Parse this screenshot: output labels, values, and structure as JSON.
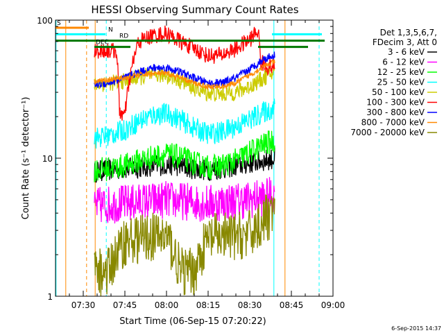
{
  "chart_data": {
    "type": "line",
    "title": "HESSI Observing Summary Count Rates",
    "xlabel": "Start Time (06-Sep-15 07:20:22)",
    "ylabel": "Count Rate (s⁻¹ detector⁻¹)",
    "x_unit": "minutes of day",
    "xlim": [
      440,
      540
    ],
    "ylim": [
      1,
      100
    ],
    "y_scale": "log",
    "x_ticks": [
      {
        "x": 450,
        "label": "07:30"
      },
      {
        "x": 465,
        "label": "07:45"
      },
      {
        "x": 480,
        "label": "08:00"
      },
      {
        "x": 495,
        "label": "08:15"
      },
      {
        "x": 510,
        "label": "08:30"
      },
      {
        "x": 525,
        "label": "08:45"
      },
      {
        "x": 540,
        "label": "09:00"
      }
    ],
    "y_ticks": [
      {
        "y": 1,
        "label": "1"
      },
      {
        "y": 10,
        "label": "10"
      },
      {
        "y": 100,
        "label": "100"
      }
    ],
    "legend_title": [
      "Det 1,3,5,6,7,",
      "FDecim 3, Att 0"
    ],
    "legend_position": "right",
    "series": [
      {
        "name": "3 - 6 keV",
        "color": "#000000",
        "x": [
          454,
          459,
          465,
          470,
          475,
          480,
          485,
          490,
          495,
          500,
          505,
          510,
          515,
          519
        ],
        "y": [
          8.0,
          8.2,
          8.4,
          8.6,
          8.8,
          9.0,
          8.8,
          8.4,
          8.2,
          8.4,
          8.8,
          9.2,
          9.6,
          10.0
        ],
        "noise": 0.08
      },
      {
        "name": "6 - 12 keV",
        "color": "#ff00ff",
        "x": [
          454,
          459,
          465,
          470,
          475,
          480,
          485,
          490,
          495,
          500,
          505,
          510,
          515,
          519
        ],
        "y": [
          4.5,
          4.6,
          4.7,
          4.8,
          4.9,
          5.0,
          4.9,
          4.8,
          4.7,
          4.8,
          4.9,
          5.0,
          5.2,
          5.4
        ],
        "noise": 0.14
      },
      {
        "name": "12 - 25 keV",
        "color": "#00ff00",
        "x": [
          454,
          459,
          465,
          470,
          475,
          480,
          485,
          490,
          495,
          500,
          505,
          510,
          515,
          519
        ],
        "y": [
          8.2,
          8.4,
          8.8,
          9.6,
          10.2,
          10.6,
          10.2,
          9.2,
          8.6,
          8.8,
          9.6,
          11.0,
          12.5,
          13.5
        ],
        "noise": 0.09
      },
      {
        "name": "25 - 50 keV",
        "color": "#00ffff",
        "x": [
          454,
          459,
          465,
          470,
          475,
          480,
          485,
          490,
          495,
          500,
          505,
          510,
          515,
          519
        ],
        "y": [
          14.0,
          14.5,
          16.0,
          18.5,
          20.5,
          21.0,
          19.0,
          16.5,
          15.0,
          15.5,
          17.0,
          19.0,
          21.5,
          23.0
        ],
        "noise": 0.08
      },
      {
        "name": "50 - 100 keV",
        "color": "#cccc00",
        "x": [
          454,
          459,
          465,
          470,
          475,
          480,
          485,
          490,
          495,
          500,
          505,
          510,
          515,
          519
        ],
        "y": [
          34.0,
          35.0,
          36.0,
          38.5,
          40.0,
          40.0,
          36.5,
          32.0,
          29.5,
          29.0,
          30.0,
          33.0,
          38.0,
          42.0
        ],
        "noise": 0.06
      },
      {
        "name": "100 - 300 keV",
        "color": "#ff0000",
        "x": [
          454,
          459,
          462,
          463,
          465,
          470,
          475,
          480,
          485,
          490,
          495,
          500,
          505,
          510,
          513,
          514,
          516,
          519
        ],
        "y": [
          60.0,
          60.0,
          60.0,
          22.0,
          20.0,
          70.0,
          77.0,
          80.0,
          70.0,
          62.0,
          55.0,
          56.0,
          62.0,
          72.0,
          84.0,
          50.0,
          46.0,
          46.0
        ],
        "noise": 0.06
      },
      {
        "name": "300 - 800 keV",
        "color": "#0000ff",
        "x": [
          454,
          459,
          465,
          470,
          475,
          480,
          485,
          490,
          495,
          500,
          505,
          510,
          515,
          519
        ],
        "y": [
          34.0,
          35.0,
          38.0,
          42.0,
          45.0,
          45.0,
          42.0,
          38.0,
          35.0,
          35.0,
          38.0,
          44.0,
          52.0,
          56.0
        ],
        "noise": 0.03
      },
      {
        "name": "800 - 7000 keV",
        "color": "#ff8800",
        "x": [
          454,
          459,
          465,
          470,
          475,
          480,
          485,
          490,
          495,
          500,
          505,
          510,
          515,
          519
        ],
        "y": [
          36.0,
          37.0,
          38.0,
          40.0,
          41.0,
          41.0,
          38.0,
          35.0,
          33.0,
          33.0,
          35.0,
          40.0,
          46.0,
          50.0
        ],
        "noise": 0.02
      },
      {
        "name": "7000 - 20000 keV",
        "color": "#888800",
        "x": [
          454,
          459,
          465,
          470,
          475,
          480,
          485,
          490,
          495,
          500,
          505,
          510,
          515,
          519
        ],
        "y": [
          1.5,
          1.5,
          2.5,
          2.6,
          2.7,
          2.7,
          1.5,
          1.5,
          2.6,
          2.7,
          2.7,
          2.8,
          3.5,
          4.2
        ],
        "noise": 0.18
      }
    ],
    "flag_bars": [
      {
        "label": "S",
        "color": "#ff8800",
        "y": 88,
        "x_start": 440,
        "x_end": 452
      },
      {
        "label": "N",
        "color": "#00ffff",
        "y": 79,
        "x_start": 440,
        "x_end": 458
      },
      {
        "label": "",
        "color": "#00ffff",
        "y": 79,
        "x_start": 518,
        "x_end": 536
      },
      {
        "label": "RD",
        "color": "#007700",
        "y": 71,
        "x_start": 440,
        "x_end": 537
      },
      {
        "label": "DEC",
        "color": "#007700",
        "y": 64,
        "x_start": 454,
        "x_end": 467
      },
      {
        "label": "",
        "color": "#007700",
        "y": 64,
        "x_start": 513,
        "x_end": 531
      }
    ],
    "vertical_lines": [
      {
        "x": 440.2,
        "color": "#00ffff",
        "style": "solid"
      },
      {
        "x": 443.7,
        "color": "#ff8800",
        "style": "solid"
      },
      {
        "x": 451.2,
        "color": "#ff8800",
        "style": "dashed"
      },
      {
        "x": 454.3,
        "color": "#ff8800",
        "style": "solid"
      },
      {
        "x": 458.3,
        "color": "#00ffff",
        "style": "dashed"
      },
      {
        "x": 518.7,
        "color": "#00ffff",
        "style": "solid"
      },
      {
        "x": 522.7,
        "color": "#ff8800",
        "style": "solid"
      },
      {
        "x": 535.0,
        "color": "#00ffff",
        "style": "dashed"
      }
    ],
    "footer_timestamp": "6-Sep-2015 14:37"
  }
}
